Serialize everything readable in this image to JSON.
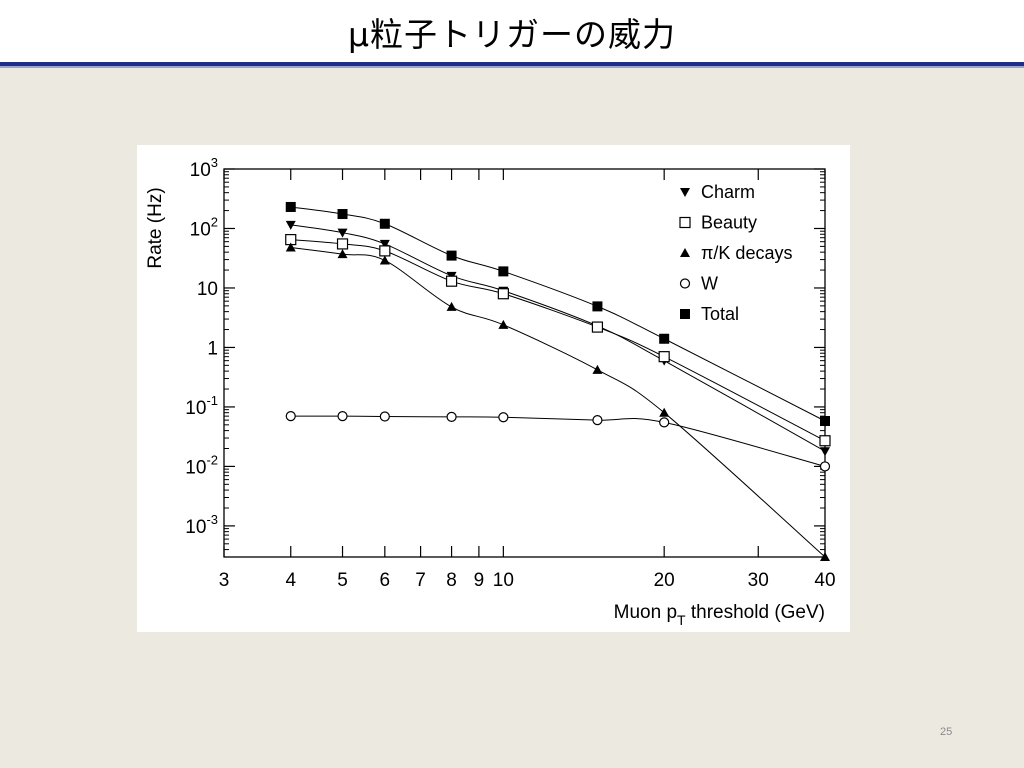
{
  "slide": {
    "title": "μ粒子トリガーの威力",
    "page_number": "25"
  },
  "chart_data": {
    "type": "line",
    "title": "",
    "xlabel_main": "Muon p",
    "xlabel_sub": "T",
    "xlabel_tail": " threshold (GeV)",
    "ylabel": "Rate (Hz)",
    "xscale": "log",
    "yscale": "log",
    "xlim": [
      3,
      40
    ],
    "ylim": [
      0.0003,
      1000
    ],
    "x_ticks": [
      {
        "value": 3,
        "label": "3"
      },
      {
        "value": 4,
        "label": "4"
      },
      {
        "value": 5,
        "label": "5"
      },
      {
        "value": 6,
        "label": "6"
      },
      {
        "value": 7,
        "label": "7"
      },
      {
        "value": 8,
        "label": "8"
      },
      {
        "value": 9,
        "label": "9"
      },
      {
        "value": 10,
        "label": "10"
      },
      {
        "value": 20,
        "label": "20"
      },
      {
        "value": 30,
        "label": "30"
      },
      {
        "value": 40,
        "label": "40"
      }
    ],
    "y_ticks": [
      {
        "value": 1000,
        "base": "10",
        "exp": "3"
      },
      {
        "value": 100,
        "base": "10",
        "exp": "2"
      },
      {
        "value": 10,
        "base": "10",
        "exp": ""
      },
      {
        "value": 1,
        "base": "1",
        "exp": ""
      },
      {
        "value": 0.1,
        "base": "10",
        "exp": "-1"
      },
      {
        "value": 0.01,
        "base": "10",
        "exp": "-2"
      },
      {
        "value": 0.001,
        "base": "10",
        "exp": "-3"
      }
    ],
    "legend_position": "top-right",
    "series": [
      {
        "name": "Charm",
        "marker": "triangle-down",
        "color": "#000000",
        "x": [
          4,
          5,
          6,
          8,
          10,
          15,
          20,
          40
        ],
        "y": [
          115,
          85,
          55,
          16,
          9,
          2.3,
          0.6,
          0.018
        ]
      },
      {
        "name": "Beauty",
        "marker": "square-open",
        "color": "#000000",
        "x": [
          4,
          5,
          6,
          8,
          10,
          15,
          20,
          40
        ],
        "y": [
          65,
          55,
          42,
          13,
          8,
          2.2,
          0.7,
          0.027
        ]
      },
      {
        "name": "π/K decays",
        "marker": "triangle-up",
        "color": "#000000",
        "x": [
          4,
          5,
          6,
          8,
          10,
          15,
          20,
          40
        ],
        "y": [
          48,
          37,
          29,
          4.8,
          2.4,
          0.42,
          0.08,
          0.0003
        ]
      },
      {
        "name": "W",
        "marker": "circle-open",
        "color": "#000000",
        "x": [
          4,
          5,
          6,
          8,
          10,
          15,
          20,
          40
        ],
        "y": [
          0.07,
          0.07,
          0.069,
          0.068,
          0.067,
          0.06,
          0.055,
          0.01
        ]
      },
      {
        "name": "Total",
        "marker": "square-filled",
        "color": "#000000",
        "x": [
          4,
          5,
          6,
          8,
          10,
          15,
          20,
          40
        ],
        "y": [
          230,
          175,
          120,
          35,
          19,
          4.9,
          1.4,
          0.058
        ]
      }
    ]
  }
}
